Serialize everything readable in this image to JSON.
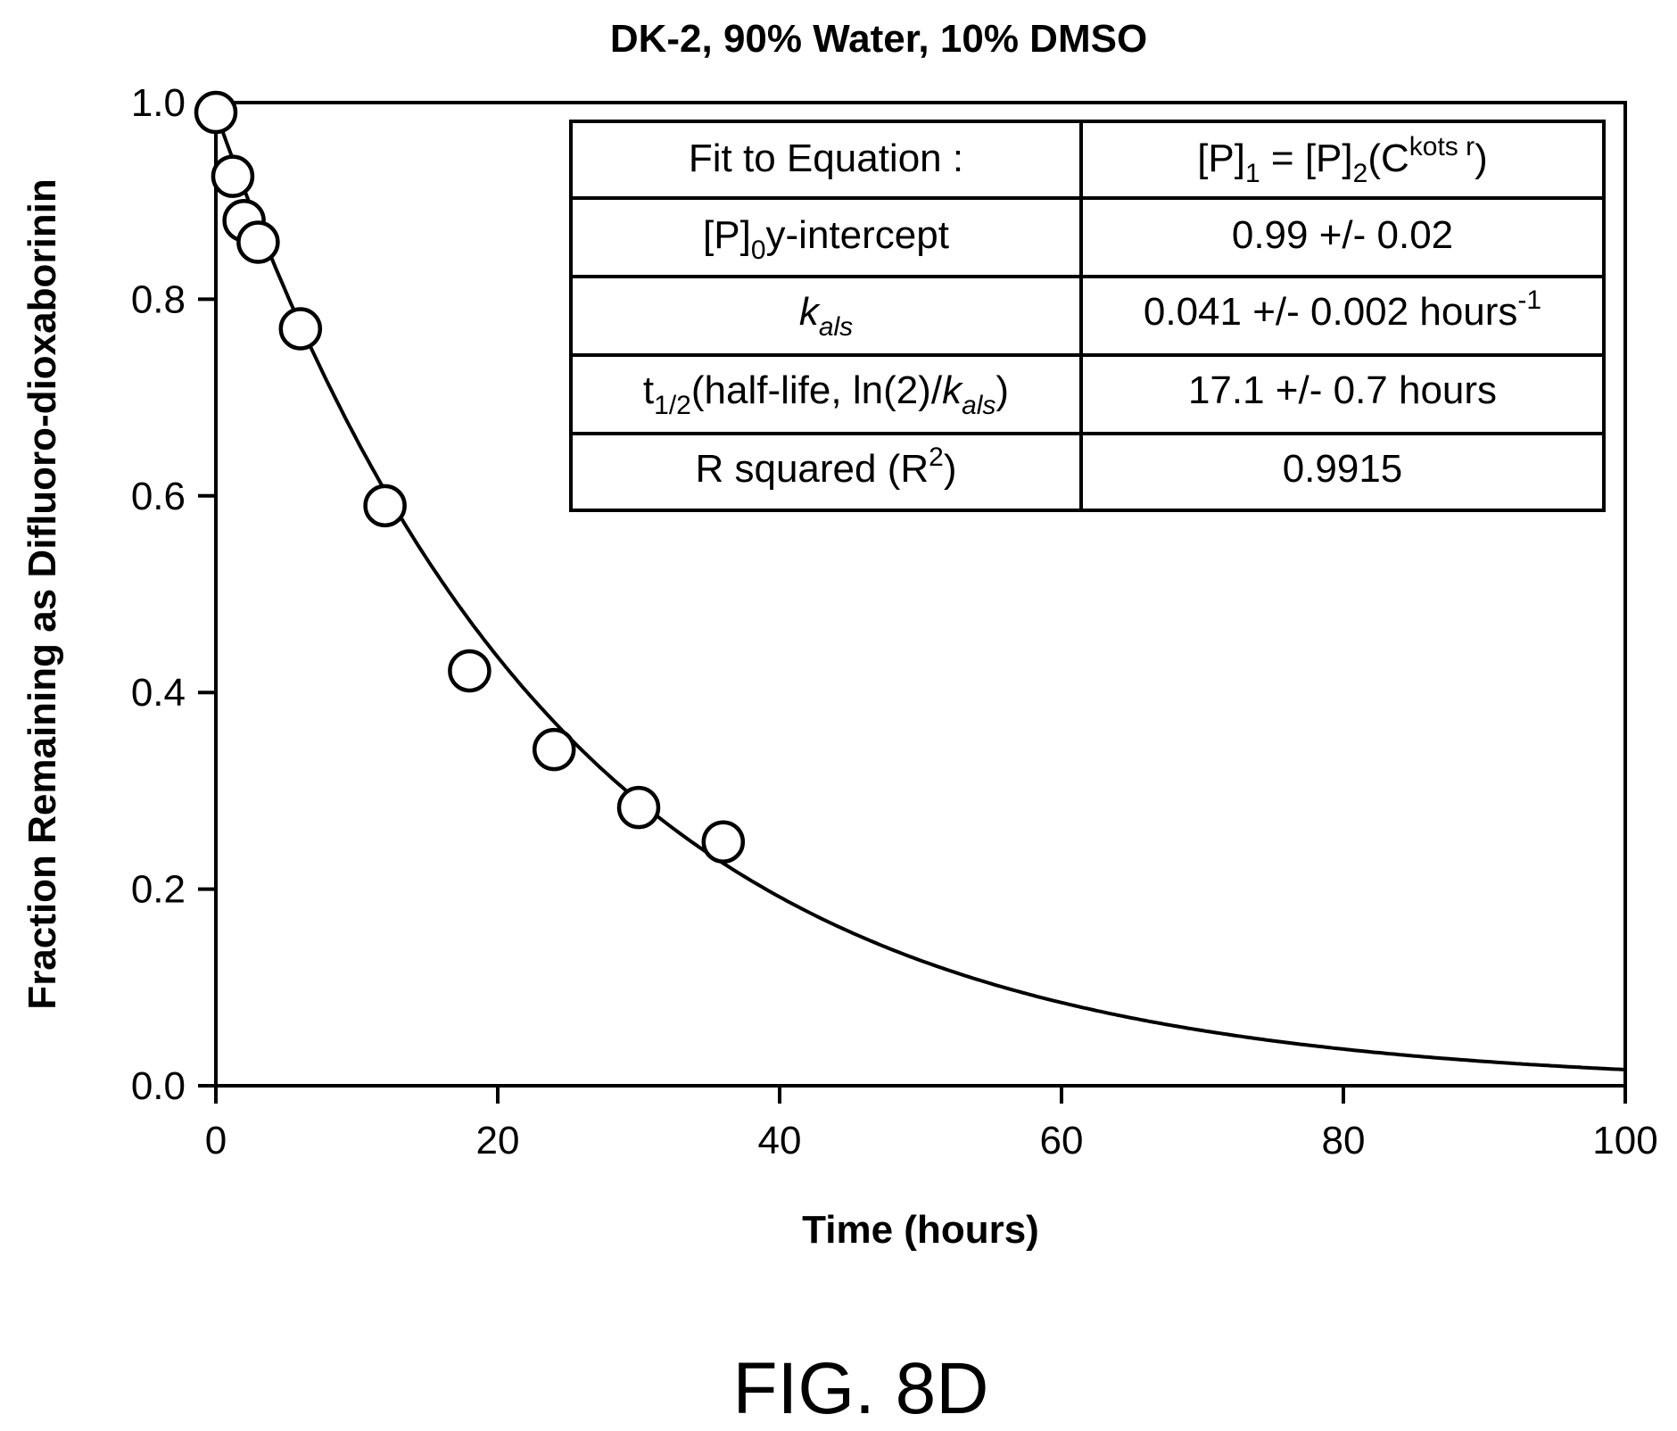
{
  "chart_data": {
    "type": "scatter",
    "title": "DK-2, 90% Water, 10% DMSO",
    "xlabel": "Time (hours)",
    "ylabel": "Fraction Remaining as Difluoro-dioxaborinin",
    "xlim": [
      0,
      100
    ],
    "ylim": [
      0,
      1.0
    ],
    "x_ticks": [
      "0",
      "20",
      "40",
      "60",
      "80",
      "100"
    ],
    "y_ticks": [
      "0.0",
      "0.2",
      "0.4",
      "0.6",
      "0.8",
      "1.0"
    ],
    "grid": false,
    "series": [
      {
        "marker": "open-circle",
        "x": [
          0,
          1.2,
          2,
          3,
          6,
          12,
          18,
          24,
          30,
          36
        ],
        "y": [
          0.99,
          0.925,
          0.88,
          0.858,
          0.77,
          0.59,
          0.422,
          0.342,
          0.283,
          0.248
        ]
      }
    ],
    "fit": {
      "type": "exponential-decay",
      "p0": 0.99,
      "k": 0.041
    }
  },
  "figure_label": "FIG. 8D",
  "fit_table": {
    "r1": {
      "label": "Fit to Equation :",
      "value_parts": [
        "[P]",
        "1",
        " = [P]",
        "2",
        "(C",
        "kots r",
        ")"
      ]
    },
    "r2": {
      "label_parts": [
        "[P]",
        "0",
        "y-intercept"
      ],
      "value": "0.99 +/- 0.02"
    },
    "r3": {
      "label_parts": [
        "k",
        "als"
      ],
      "value_parts": [
        "0.041 +/- 0.002 hours",
        "-1"
      ]
    },
    "r4": {
      "label_parts": [
        "t",
        "1/2",
        "(half-life, ln(2)/",
        "k",
        "als",
        ")"
      ],
      "value": "17.1 +/- 0.7 hours"
    },
    "r5": {
      "label_parts": [
        "R squared (R",
        "2",
        ")"
      ],
      "value": "0.9915"
    }
  }
}
